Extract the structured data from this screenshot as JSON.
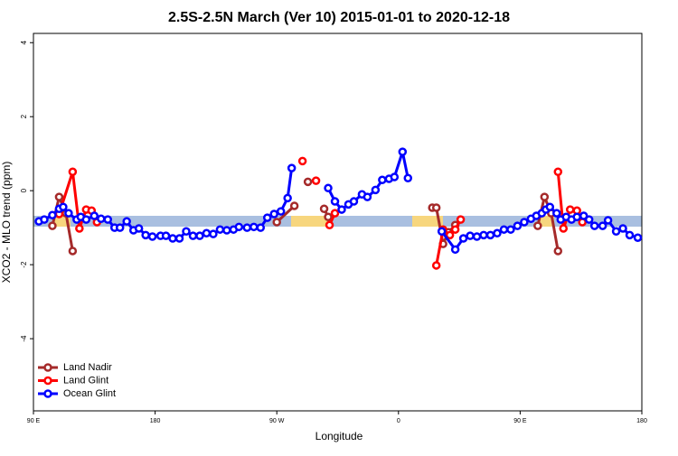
{
  "chart_data": {
    "type": "line",
    "title": "2.5S-2.5N March (Ver 10)   2015-01-01 to 2020-12-18",
    "x_label": "Longitude",
    "y_label": "XCO2 - MLO trend (ppm)",
    "xlim": [
      90,
      540
    ],
    "xticks": [
      {
        "value": 90,
        "label": "90 E"
      },
      180,
      {
        "value": 270,
        "label": "90 W"
      },
      {
        "value": 360,
        "label": "0"
      },
      {
        "value": 450,
        "label": "90 E"
      },
      180
    ],
    "xtick_values": [
      90,
      180,
      270,
      360,
      450,
      540
    ],
    "ylim": [
      -5.95,
      4.25
    ],
    "yticks": [
      -4,
      -2,
      0,
      2,
      4
    ],
    "legend": "bottom-left",
    "series": [
      {
        "name": "Land Nadir",
        "color": "#a52a2a",
        "x": [
          104,
          109,
          114,
          119,
          200,
          270,
          283,
          288,
          293,
          299,
          305,
          308,
          340,
          385,
          388,
          393,
          397,
          402,
          430,
          463,
          468,
          473,
          478
        ],
        "values": [
          -0.95,
          -0.17,
          -0.61,
          -1.63,
          null,
          -0.85,
          -0.41,
          null,
          0.24,
          null,
          -0.49,
          -0.71,
          null,
          -0.46,
          -0.46,
          -1.44,
          -1.12,
          -0.93,
          null,
          -0.95,
          -0.17,
          -0.61,
          -1.63
        ]
      },
      {
        "name": "Land Glint",
        "color": "#ff0000",
        "x": [
          109,
          119,
          124,
          129,
          133,
          137,
          210,
          289,
          294,
          299,
          304,
          309,
          313,
          350,
          388,
          393,
          398,
          402,
          406,
          440,
          478,
          482,
          487,
          492,
          496
        ],
        "values": [
          -0.63,
          0.51,
          -1.02,
          -0.51,
          -0.54,
          -0.85,
          null,
          0.8,
          null,
          0.27,
          null,
          -0.93,
          -0.61,
          null,
          -2.02,
          -1.05,
          -1.2,
          -1.05,
          -0.78,
          null,
          0.51,
          -1.02,
          -0.51,
          -0.54,
          -0.85
        ]
      },
      {
        "name": "Ocean Glint",
        "color": "#0000ff",
        "x": [
          94,
          98,
          104,
          109,
          112,
          116,
          122,
          125,
          129,
          135,
          140,
          145,
          150,
          154,
          159,
          164,
          168,
          173,
          178,
          184,
          188,
          193,
          198,
          203,
          208,
          213,
          218,
          223,
          228,
          233,
          238,
          242,
          248,
          253,
          258,
          263,
          268,
          273,
          278,
          281,
          295,
          308,
          313,
          318,
          323,
          327,
          333,
          337,
          343,
          348,
          353,
          357,
          363,
          367,
          380,
          392,
          402,
          408,
          413,
          418,
          423,
          428,
          433,
          438,
          443,
          448,
          453,
          458,
          462,
          466,
          469,
          472,
          477,
          480,
          484,
          488,
          492,
          497,
          501,
          505,
          511,
          515,
          521,
          526,
          531,
          537
        ],
        "values": [
          -0.83,
          -0.78,
          -0.66,
          -0.49,
          -0.44,
          -0.61,
          -0.78,
          -0.71,
          -0.78,
          -0.68,
          -0.76,
          -0.78,
          -1.0,
          -1.0,
          -0.83,
          -1.07,
          -1.02,
          -1.2,
          -1.24,
          -1.22,
          -1.22,
          -1.29,
          -1.29,
          -1.1,
          -1.22,
          -1.22,
          -1.15,
          -1.17,
          -1.05,
          -1.07,
          -1.05,
          -0.98,
          -1.0,
          -0.98,
          -1.0,
          -0.73,
          -0.63,
          -0.56,
          -0.2,
          0.61,
          null,
          0.07,
          -0.29,
          -0.51,
          -0.37,
          -0.29,
          -0.1,
          -0.17,
          0.02,
          0.29,
          0.32,
          0.37,
          1.05,
          0.34,
          null,
          -1.1,
          -1.59,
          -1.29,
          -1.22,
          -1.24,
          -1.2,
          -1.2,
          -1.15,
          -1.05,
          -1.05,
          -0.95,
          -0.85,
          -0.76,
          -0.68,
          -0.61,
          -0.51,
          -0.44,
          -0.61,
          -0.78,
          -0.71,
          -0.78,
          -0.71,
          -0.68,
          -0.78,
          -0.95,
          -0.95,
          -0.8,
          -1.1,
          -1.02,
          -1.2,
          -1.27
        ]
      }
    ]
  }
}
